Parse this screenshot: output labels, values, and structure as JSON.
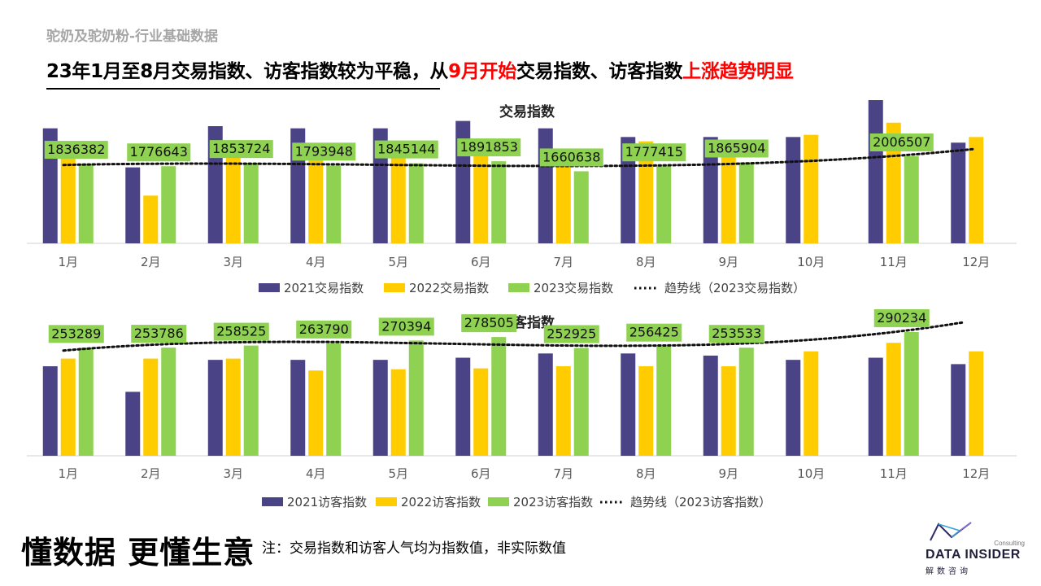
{
  "page": {
    "subtitle": "驼奶及驼奶粉-行业基础数据",
    "headline_parts": [
      "23年1月至8月交易指数、访客指数较为平稳，从",
      "9月开始",
      "交易指数、访客指数",
      "上涨趋势明显"
    ],
    "slogan": "懂数据 更懂生意",
    "note": "注：交易指数和访客人气均为指数值，非实际数值",
    "logo": {
      "consulting": "Consulting",
      "brand": "DATA INSIDER",
      "brand_cn": "解数咨询"
    }
  },
  "colors": {
    "s2021": "#4a4487",
    "s2022": "#ffcc00",
    "s2023": "#8fd150",
    "label_bg": "#8fd150",
    "accent_red": "#ff0000"
  },
  "chart_data": [
    {
      "type": "bar",
      "title": "交易指数",
      "categories": [
        "1月",
        "2月",
        "3月",
        "4月",
        "5月",
        "6月",
        "7月",
        "8月",
        "9月",
        "10月",
        "11月",
        "12月"
      ],
      "series": [
        {
          "name": "2021交易指数",
          "values": [
            2650000,
            1750000,
            2700000,
            2650000,
            2650000,
            2820000,
            2650000,
            2450000,
            2450000,
            2450000,
            3300000,
            2320000
          ]
        },
        {
          "name": "2022交易指数",
          "values": [
            2250000,
            1100000,
            2150000,
            2080000,
            2350000,
            2400000,
            1800000,
            2350000,
            2280000,
            2500000,
            2780000,
            2450000
          ]
        },
        {
          "name": "2023交易指数",
          "values": [
            1836382,
            1776643,
            1853724,
            1793948,
            1845144,
            1891853,
            1660638,
            1777415,
            1865904,
            null,
            2006507,
            null
          ]
        }
      ],
      "data_labels": [
        "1836382",
        "1776643",
        "1853724",
        "1793948",
        "1845144",
        "1891853",
        "1660638",
        "1777415",
        "1865904",
        "",
        "2006507",
        ""
      ],
      "trendline": {
        "name": "趋势线（2023交易指数）",
        "style": "dotted",
        "type": "polynomial"
      },
      "ylim": [
        0,
        4000000
      ],
      "legend": "bottom",
      "grid": false
    },
    {
      "type": "bar",
      "title": "访客指数",
      "categories": [
        "1月",
        "2月",
        "3月",
        "4月",
        "5月",
        "6月",
        "7月",
        "8月",
        "9月",
        "10月",
        "11月",
        "12月"
      ],
      "series": [
        {
          "name": "2021访客指数",
          "values": [
            210000,
            150000,
            225000,
            225000,
            225000,
            230000,
            240000,
            240000,
            235000,
            225000,
            230000,
            215000
          ]
        },
        {
          "name": "2022访客指数",
          "values": [
            228000,
            228000,
            228000,
            200000,
            203000,
            205000,
            210000,
            210000,
            210000,
            245000,
            265000,
            245000
          ]
        },
        {
          "name": "2023访客指数",
          "values": [
            253289,
            253786,
            258525,
            263790,
            270394,
            278505,
            252925,
            256425,
            253533,
            null,
            290234,
            null
          ]
        }
      ],
      "data_labels": [
        "253289",
        "253786",
        "258525",
        "263790",
        "270394",
        "278505",
        "252925",
        "256425",
        "253533",
        "",
        "290234",
        ""
      ],
      "trendline": {
        "name": "趋势线（2023访客指数）",
        "style": "dotted",
        "type": "polynomial"
      },
      "ylim": [
        0,
        420000
      ],
      "legend": "bottom",
      "grid": false
    }
  ]
}
